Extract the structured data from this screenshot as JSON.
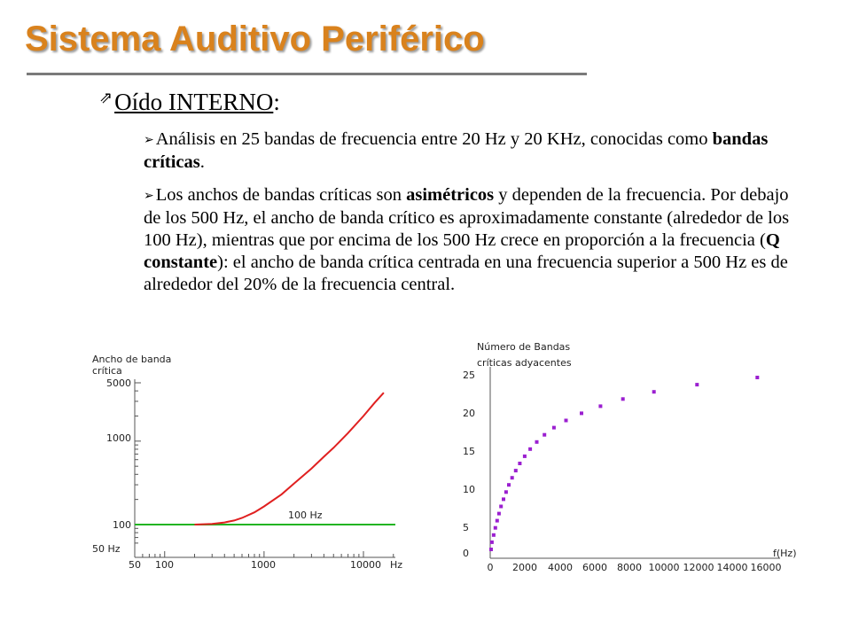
{
  "slide": {
    "title": "Sistema Auditivo Periférico",
    "heading_main": "Oído INTERNO",
    "heading_colon": ":",
    "bullet1": {
      "p1": "Análisis en 25 bandas de frecuencia entre 20 Hz y 20 KHz, conocidas como ",
      "bold": "bandas críticas",
      "p2": "."
    },
    "bullet2": {
      "p1": "Los anchos de bandas críticas son ",
      "b1": "asimétricos",
      "p2": " y dependen de la frecuencia. Por debajo de los 500 Hz, el ancho de banda crítico es aproximadamente constante (alrededor de los 100 Hz), mientras que por encima de los 500 Hz crece en proporción a la frecuencia (",
      "b2": "Q constante",
      "p3": "): el ancho de banda crítica centrada en una frecuencia superior a 500 Hz es de alrededor del 20% de la frecuencia central."
    }
  },
  "chart_data": [
    {
      "type": "line",
      "ylabel_line1": "Ancho de banda",
      "ylabel_line2": "crítica",
      "xscale": "log",
      "yscale": "log",
      "xlim": [
        50,
        20000
      ],
      "ylim": [
        50,
        5000
      ],
      "x_ticks": [
        "50",
        "100",
        "1000",
        "10000"
      ],
      "x_unit": "Hz",
      "y_ticks": [
        "5000",
        "1000",
        "100"
      ],
      "y_bottom_label": "50  Hz",
      "series": [
        {
          "color": "#e02020",
          "x": [
            200,
            300,
            400,
            500,
            600,
            800,
            1000,
            1500,
            2000,
            3000,
            4000,
            5000,
            7000,
            10000,
            13000,
            16000
          ],
          "y": [
            100,
            102,
            106,
            112,
            120,
            140,
            165,
            230,
            310,
            470,
            650,
            830,
            1250,
            2000,
            2900,
            3800
          ]
        },
        {
          "color": "#22b422",
          "name": "100 Hz",
          "x": [
            50,
            20000
          ],
          "y": [
            100,
            100
          ]
        }
      ]
    },
    {
      "type": "scatter",
      "ylabel_line1": "Número de Bandas",
      "ylabel_line2": "críticas adyacentes",
      "xlabel": "f(Hz)",
      "xlim": [
        0,
        16000
      ],
      "ylim": [
        0,
        25
      ],
      "x_ticks": [
        "0",
        "2000",
        "4000",
        "6000",
        "8000",
        "10000",
        "12000",
        "14000",
        "16000"
      ],
      "y_ticks": [
        "25",
        "20",
        "15",
        "10",
        "5",
        "0"
      ],
      "color": "#9b1fd0",
      "x": [
        50,
        100,
        200,
        300,
        400,
        510,
        630,
        770,
        920,
        1080,
        1270,
        1480,
        1720,
        2000,
        2320,
        2700,
        3150,
        3700,
        4400,
        5300,
        6400,
        7700,
        9500,
        12000,
        15500
      ],
      "y": [
        0.5,
        1.5,
        2.5,
        3.5,
        4.5,
        5.5,
        6.5,
        7.5,
        8.5,
        9.5,
        10.5,
        11.5,
        12.5,
        13.5,
        14.5,
        15.5,
        16.5,
        17.5,
        18.5,
        19.5,
        20.5,
        21.5,
        22.5,
        23.5,
        24.5
      ]
    }
  ]
}
